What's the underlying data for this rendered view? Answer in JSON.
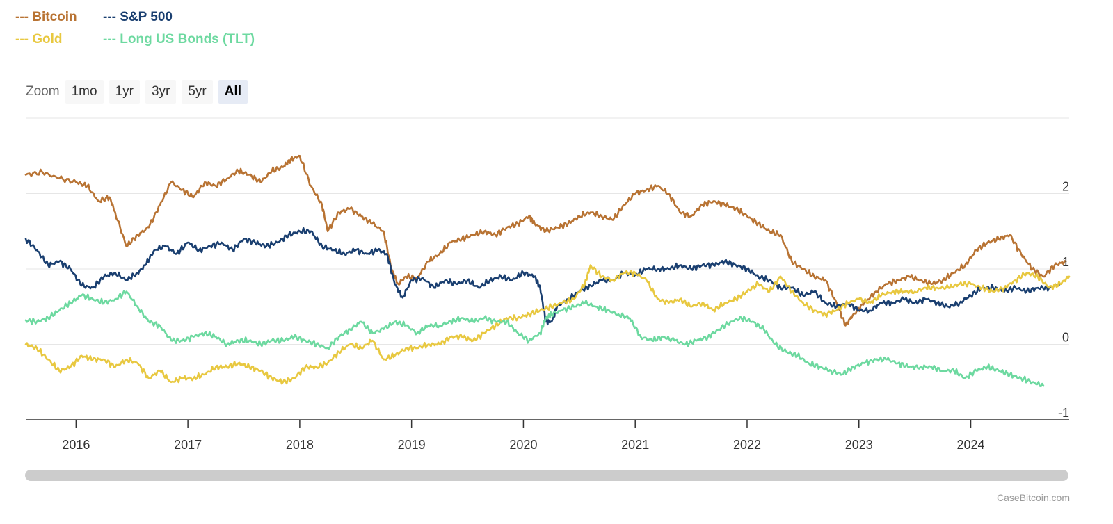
{
  "legend": {
    "items": [
      {
        "label": "--- Bitcoin",
        "color": "#b87333"
      },
      {
        "label": "--- S&P 500",
        "color": "#1a3f70"
      },
      {
        "label": "--- Gold",
        "color": "#e8c840"
      },
      {
        "label": "--- Long US Bonds (TLT)",
        "color": "#6dd9a0"
      }
    ]
  },
  "zoom": {
    "label": "Zoom",
    "buttons": [
      "1mo",
      "1yr",
      "3yr",
      "5yr",
      "All"
    ],
    "active": "All"
  },
  "credit": "CaseBitcoin.com",
  "chart_data": {
    "type": "line",
    "xlim": [
      2015.55,
      2024.88
    ],
    "ylim": [
      -1,
      3
    ],
    "yticks": [
      -1,
      0,
      1,
      2
    ],
    "xticks": [
      "2016",
      "2017",
      "2018",
      "2019",
      "2020",
      "2021",
      "2022",
      "2023",
      "2024"
    ],
    "grid": true,
    "legend_position": "top-left",
    "series": [
      {
        "name": "Bitcoin",
        "color": "#b87333",
        "x": [
          2015.55,
          2015.7,
          2015.85,
          2016.0,
          2016.1,
          2016.2,
          2016.3,
          2016.35,
          2016.45,
          2016.55,
          2016.65,
          2016.75,
          2016.85,
          2016.95,
          2017.05,
          2017.15,
          2017.25,
          2017.35,
          2017.45,
          2017.55,
          2017.65,
          2017.75,
          2017.85,
          2017.92,
          2018.0,
          2018.1,
          2018.2,
          2018.25,
          2018.35,
          2018.45,
          2018.55,
          2018.65,
          2018.75,
          2018.82,
          2018.88,
          2018.95,
          2019.05,
          2019.15,
          2019.25,
          2019.35,
          2019.45,
          2019.55,
          2019.65,
          2019.75,
          2019.85,
          2019.95,
          2020.05,
          2020.1,
          2020.2,
          2020.3,
          2020.4,
          2020.5,
          2020.6,
          2020.7,
          2020.8,
          2020.9,
          2021.0,
          2021.1,
          2021.2,
          2021.3,
          2021.4,
          2021.5,
          2021.6,
          2021.7,
          2021.8,
          2021.9,
          2022.0,
          2022.1,
          2022.2,
          2022.3,
          2022.4,
          2022.5,
          2022.6,
          2022.7,
          2022.8,
          2022.88,
          2022.95,
          2023.05,
          2023.15,
          2023.25,
          2023.35,
          2023.45,
          2023.55,
          2023.65,
          2023.75,
          2023.85,
          2023.95,
          2024.05,
          2024.15,
          2024.25,
          2024.35,
          2024.45,
          2024.55,
          2024.65,
          2024.75,
          2024.85
        ],
        "y": [
          2.25,
          2.28,
          2.2,
          2.15,
          2.1,
          1.9,
          1.95,
          1.75,
          1.3,
          1.45,
          1.55,
          1.85,
          2.15,
          2.05,
          1.95,
          2.15,
          2.1,
          2.2,
          2.3,
          2.25,
          2.15,
          2.3,
          2.35,
          2.45,
          2.5,
          2.1,
          1.85,
          1.5,
          1.75,
          1.8,
          1.7,
          1.6,
          1.5,
          1.0,
          0.8,
          0.9,
          0.88,
          1.1,
          1.2,
          1.35,
          1.4,
          1.45,
          1.5,
          1.45,
          1.55,
          1.6,
          1.7,
          1.6,
          1.5,
          1.55,
          1.6,
          1.7,
          1.75,
          1.7,
          1.65,
          1.85,
          2.0,
          2.05,
          2.1,
          2.0,
          1.75,
          1.7,
          1.85,
          1.9,
          1.85,
          1.8,
          1.7,
          1.6,
          1.5,
          1.45,
          1.1,
          1.0,
          0.9,
          0.85,
          0.55,
          0.25,
          0.4,
          0.55,
          0.7,
          0.8,
          0.85,
          0.9,
          0.85,
          0.8,
          0.85,
          0.95,
          1.05,
          1.25,
          1.35,
          1.4,
          1.45,
          1.2,
          1.0,
          0.9,
          1.05,
          1.1
        ]
      },
      {
        "name": "S&P 500",
        "color": "#1a3f70",
        "x": [
          2015.55,
          2015.65,
          2015.75,
          2015.85,
          2015.95,
          2016.05,
          2016.15,
          2016.25,
          2016.35,
          2016.45,
          2016.55,
          2016.62,
          2016.7,
          2016.8,
          2016.9,
          2017.0,
          2017.1,
          2017.2,
          2017.3,
          2017.4,
          2017.5,
          2017.6,
          2017.7,
          2017.8,
          2017.9,
          2018.0,
          2018.1,
          2018.2,
          2018.3,
          2018.4,
          2018.5,
          2018.6,
          2018.7,
          2018.78,
          2018.85,
          2018.92,
          2019.0,
          2019.1,
          2019.2,
          2019.3,
          2019.4,
          2019.5,
          2019.6,
          2019.7,
          2019.8,
          2019.9,
          2020.0,
          2020.1,
          2020.15,
          2020.2,
          2020.25,
          2020.3,
          2020.4,
          2020.5,
          2020.6,
          2020.7,
          2020.8,
          2020.9,
          2021.0,
          2021.1,
          2021.2,
          2021.3,
          2021.4,
          2021.5,
          2021.6,
          2021.7,
          2021.8,
          2021.9,
          2022.0,
          2022.1,
          2022.2,
          2022.3,
          2022.4,
          2022.5,
          2022.6,
          2022.7,
          2022.8,
          2022.9,
          2023.0,
          2023.1,
          2023.2,
          2023.3,
          2023.4,
          2023.5,
          2023.6,
          2023.7,
          2023.8,
          2023.9,
          2024.0,
          2024.1,
          2024.2,
          2024.3,
          2024.4,
          2024.5,
          2024.6,
          2024.7,
          2024.8
        ],
        "y": [
          1.4,
          1.25,
          1.05,
          1.1,
          1.0,
          0.78,
          0.75,
          0.9,
          0.95,
          0.85,
          0.95,
          1.05,
          1.25,
          1.3,
          1.2,
          1.35,
          1.25,
          1.3,
          1.35,
          1.25,
          1.4,
          1.35,
          1.3,
          1.35,
          1.45,
          1.5,
          1.5,
          1.3,
          1.25,
          1.2,
          1.25,
          1.2,
          1.25,
          1.2,
          0.8,
          0.62,
          0.85,
          0.88,
          0.75,
          0.85,
          0.8,
          0.85,
          0.75,
          0.85,
          0.9,
          0.85,
          0.95,
          0.9,
          0.75,
          0.3,
          0.3,
          0.5,
          0.6,
          0.7,
          0.78,
          0.85,
          0.85,
          0.95,
          0.92,
          1.0,
          1.0,
          1.0,
          1.05,
          1.0,
          1.05,
          1.05,
          1.1,
          1.05,
          1.0,
          0.9,
          0.85,
          0.75,
          0.75,
          0.65,
          0.7,
          0.55,
          0.5,
          0.55,
          0.45,
          0.45,
          0.55,
          0.55,
          0.6,
          0.55,
          0.6,
          0.55,
          0.5,
          0.55,
          0.65,
          0.75,
          0.75,
          0.7,
          0.75,
          0.7,
          0.75,
          0.75,
          0.8
        ]
      },
      {
        "name": "Gold",
        "color": "#e8c840",
        "x": [
          2015.55,
          2015.65,
          2015.75,
          2015.85,
          2015.95,
          2016.05,
          2016.15,
          2016.25,
          2016.35,
          2016.45,
          2016.55,
          2016.65,
          2016.75,
          2016.85,
          2016.95,
          2017.05,
          2017.15,
          2017.25,
          2017.35,
          2017.45,
          2017.55,
          2017.65,
          2017.75,
          2017.85,
          2017.95,
          2018.05,
          2018.15,
          2018.25,
          2018.35,
          2018.45,
          2018.55,
          2018.65,
          2018.75,
          2018.85,
          2018.95,
          2019.05,
          2019.15,
          2019.25,
          2019.35,
          2019.45,
          2019.55,
          2019.65,
          2019.75,
          2019.85,
          2019.95,
          2020.05,
          2020.15,
          2020.25,
          2020.35,
          2020.45,
          2020.55,
          2020.6,
          2020.7,
          2020.8,
          2020.9,
          2021.0,
          2021.1,
          2021.2,
          2021.3,
          2021.4,
          2021.5,
          2021.6,
          2021.7,
          2021.8,
          2021.9,
          2022.0,
          2022.1,
          2022.2,
          2022.3,
          2022.4,
          2022.5,
          2022.6,
          2022.7,
          2022.8,
          2022.9,
          2023.0,
          2023.1,
          2023.2,
          2023.3,
          2023.4,
          2023.5,
          2023.6,
          2023.7,
          2023.8,
          2023.9,
          2024.0,
          2024.1,
          2024.2,
          2024.3,
          2024.4,
          2024.5,
          2024.6,
          2024.7,
          2024.8,
          2024.88
        ],
        "y": [
          0.0,
          -0.05,
          -0.2,
          -0.35,
          -0.3,
          -0.15,
          -0.2,
          -0.2,
          -0.3,
          -0.2,
          -0.25,
          -0.45,
          -0.35,
          -0.5,
          -0.45,
          -0.45,
          -0.4,
          -0.3,
          -0.3,
          -0.25,
          -0.3,
          -0.35,
          -0.45,
          -0.5,
          -0.45,
          -0.3,
          -0.3,
          -0.25,
          -0.1,
          0.0,
          -0.05,
          0.05,
          -0.2,
          -0.15,
          -0.05,
          -0.05,
          0.0,
          0.0,
          0.1,
          0.1,
          0.05,
          0.15,
          0.25,
          0.35,
          0.35,
          0.4,
          0.45,
          0.5,
          0.55,
          0.6,
          0.8,
          1.05,
          0.9,
          0.85,
          0.95,
          0.95,
          0.85,
          0.6,
          0.55,
          0.6,
          0.5,
          0.55,
          0.45,
          0.55,
          0.6,
          0.7,
          0.8,
          0.7,
          0.9,
          0.7,
          0.55,
          0.45,
          0.4,
          0.45,
          0.55,
          0.6,
          0.55,
          0.65,
          0.7,
          0.7,
          0.7,
          0.75,
          0.75,
          0.75,
          0.8,
          0.8,
          0.75,
          0.7,
          0.75,
          0.85,
          0.95,
          0.9,
          0.75,
          0.8,
          0.9
        ]
      },
      {
        "name": "Long US Bonds (TLT)",
        "color": "#6dd9a0",
        "x": [
          2015.55,
          2015.65,
          2015.75,
          2015.85,
          2015.95,
          2016.05,
          2016.15,
          2016.25,
          2016.35,
          2016.45,
          2016.55,
          2016.65,
          2016.75,
          2016.85,
          2016.95,
          2017.05,
          2017.15,
          2017.25,
          2017.35,
          2017.45,
          2017.55,
          2017.65,
          2017.75,
          2017.85,
          2017.95,
          2018.05,
          2018.15,
          2018.25,
          2018.35,
          2018.45,
          2018.55,
          2018.65,
          2018.75,
          2018.85,
          2018.95,
          2019.05,
          2019.15,
          2019.25,
          2019.35,
          2019.45,
          2019.55,
          2019.65,
          2019.75,
          2019.85,
          2019.95,
          2020.05,
          2020.15,
          2020.2,
          2020.25,
          2020.35,
          2020.45,
          2020.55,
          2020.65,
          2020.75,
          2020.85,
          2020.95,
          2021.05,
          2021.15,
          2021.25,
          2021.35,
          2021.45,
          2021.55,
          2021.65,
          2021.75,
          2021.85,
          2021.95,
          2022.05,
          2022.15,
          2022.25,
          2022.35,
          2022.45,
          2022.55,
          2022.65,
          2022.75,
          2022.85,
          2022.95,
          2023.05,
          2023.15,
          2023.25,
          2023.35,
          2023.45,
          2023.55,
          2023.65,
          2023.75,
          2023.85,
          2023.95,
          2024.05,
          2024.15,
          2024.25,
          2024.35,
          2024.45,
          2024.55,
          2024.65
        ],
        "y": [
          0.32,
          0.3,
          0.35,
          0.45,
          0.55,
          0.65,
          0.6,
          0.55,
          0.6,
          0.7,
          0.5,
          0.3,
          0.25,
          0.05,
          0.05,
          0.1,
          0.15,
          0.1,
          0.0,
          0.05,
          0.05,
          0.0,
          0.05,
          0.05,
          0.1,
          0.05,
          0.0,
          -0.05,
          0.1,
          0.2,
          0.3,
          0.15,
          0.2,
          0.3,
          0.25,
          0.15,
          0.25,
          0.25,
          0.3,
          0.35,
          0.3,
          0.35,
          0.3,
          0.3,
          0.15,
          0.05,
          0.15,
          0.35,
          0.4,
          0.45,
          0.5,
          0.55,
          0.5,
          0.45,
          0.4,
          0.35,
          0.1,
          0.05,
          0.1,
          0.05,
          0.0,
          0.05,
          0.1,
          0.2,
          0.3,
          0.35,
          0.3,
          0.2,
          0.0,
          -0.1,
          -0.15,
          -0.25,
          -0.3,
          -0.35,
          -0.4,
          -0.3,
          -0.25,
          -0.2,
          -0.2,
          -0.25,
          -0.3,
          -0.3,
          -0.3,
          -0.35,
          -0.35,
          -0.45,
          -0.35,
          -0.3,
          -0.35,
          -0.4,
          -0.45,
          -0.5,
          -0.55
        ]
      }
    ]
  }
}
